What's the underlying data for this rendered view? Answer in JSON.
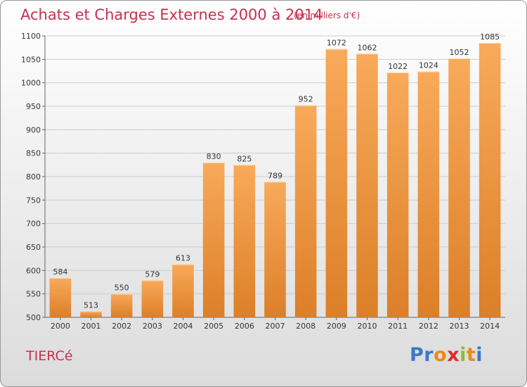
{
  "header": {
    "title": "Achats et Charges Externes 2000 à 2014",
    "subtitle": "(en milliers d'€)"
  },
  "footer": {
    "town": "TIERCé",
    "logo_letters": [
      {
        "ch": "P",
        "color": "#3a78c8"
      },
      {
        "ch": "r",
        "color": "#3a78c8"
      },
      {
        "ch": "o",
        "color": "#e88a1a"
      },
      {
        "ch": "x",
        "color": "#e02a2a"
      },
      {
        "ch": "i",
        "color": "#8abf2a"
      },
      {
        "ch": "t",
        "color": "#e88a1a"
      },
      {
        "ch": "i",
        "color": "#3a78c8"
      }
    ]
  },
  "colors": {
    "bar_light": "#f8aa5a",
    "bar_dark": "#dc7f28",
    "grid": "#cccccc",
    "accent": "#c8304f"
  },
  "chart_data": {
    "type": "bar",
    "title": "Achats et Charges Externes 2000 à 2014",
    "subtitle": "(en milliers d'€)",
    "categories": [
      "2000",
      "2001",
      "2002",
      "2003",
      "2004",
      "2005",
      "2006",
      "2007",
      "2008",
      "2009",
      "2010",
      "2011",
      "2012",
      "2013",
      "2014"
    ],
    "values": [
      584,
      513,
      550,
      579,
      613,
      830,
      825,
      789,
      952,
      1072,
      1062,
      1022,
      1024,
      1052,
      1085
    ],
    "ylim": [
      500,
      1100
    ],
    "yticks": [
      500,
      550,
      600,
      650,
      700,
      750,
      800,
      850,
      900,
      950,
      1000,
      1050,
      1100
    ],
    "grid": true,
    "xlabel": "",
    "ylabel": ""
  }
}
